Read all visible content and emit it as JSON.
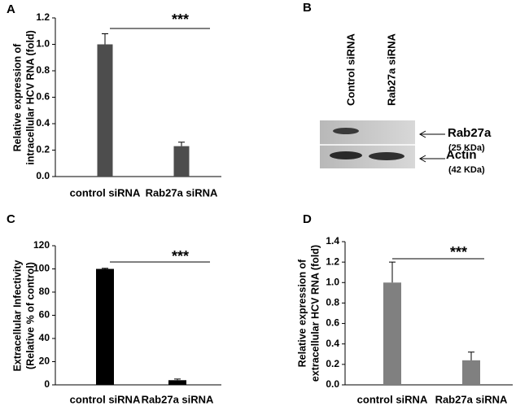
{
  "chart_data": [
    {
      "type": "bar",
      "panel": "A",
      "ylabel": [
        "Relative expression of",
        "intracellular HCV RNA (fold)"
      ],
      "categories": [
        "control siRNA",
        "Rab27a siRNA"
      ],
      "values": [
        1.0,
        0.23
      ],
      "errors": [
        0.08,
        0.03
      ],
      "color": "#4d4d4d",
      "ylim": [
        0,
        1.2
      ],
      "yticks": [
        {
          "value": 0,
          "label": "0.0"
        },
        {
          "value": 0.2,
          "label": "0.2"
        },
        {
          "value": 0.4,
          "label": "0.4"
        },
        {
          "value": 0.6,
          "label": "0.6"
        },
        {
          "value": 0.8,
          "label": "0.8"
        },
        {
          "value": 1.0,
          "label": "1.0"
        },
        {
          "value": 1.2,
          "label": "1.2"
        }
      ],
      "annotation": "***"
    },
    {
      "type": "bar",
      "panel": "C",
      "ylabel": [
        "Extracellular Infectivity",
        "(Relative % of control)"
      ],
      "categories": [
        "control siRNA",
        "Rab27a siRNA"
      ],
      "values": [
        100,
        4
      ],
      "errors": [
        0.5,
        1
      ],
      "color": "#000000",
      "ylim": [
        0,
        120
      ],
      "yticks": [
        0,
        20,
        40,
        60,
        80,
        100,
        120
      ],
      "annotation": "***"
    },
    {
      "type": "bar",
      "panel": "D",
      "ylabel": [
        "Relative expression of",
        "extracellular HCV RNA (fold)"
      ],
      "categories": [
        "control siRNA",
        "Rab27a siRNA"
      ],
      "values": [
        1.0,
        0.24
      ],
      "errors": [
        0.2,
        0.08
      ],
      "color": "#808080",
      "ylim": [
        0,
        1.4
      ],
      "yticks": [
        {
          "value": 0,
          "label": "0.0"
        },
        {
          "value": 0.2,
          "label": "0.2"
        },
        {
          "value": 0.4,
          "label": "0.4"
        },
        {
          "value": 0.6,
          "label": "0.6"
        },
        {
          "value": 0.8,
          "label": "0.8"
        },
        {
          "value": 1.0,
          "label": "1.0"
        },
        {
          "value": 1.2,
          "label": "1.2"
        },
        {
          "value": 1.4,
          "label": "1.4"
        }
      ],
      "annotation": "***"
    }
  ],
  "blot": {
    "panel": "B",
    "lanes": [
      "Control siRNA",
      "Rab27a siRNA"
    ],
    "bands": [
      {
        "name": "Rab27a",
        "size": "(25 KDa)"
      },
      {
        "name": "Actin",
        "size": "(42 KDa)"
      }
    ]
  }
}
